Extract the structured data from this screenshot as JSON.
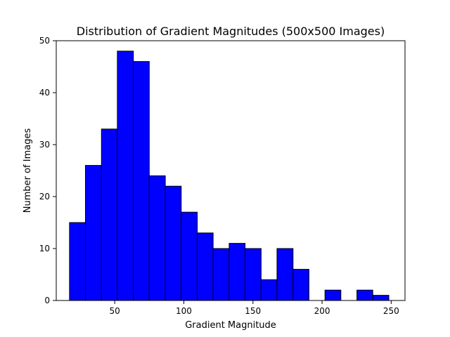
{
  "chart_data": {
    "type": "bar",
    "title": "Distribution of Gradient Magnitudes (500x500 Images)",
    "xlabel": "Gradient Magnitude",
    "ylabel": "Number of Images",
    "xlim": [
      7.7,
      260.0
    ],
    "ylim": [
      0,
      50
    ],
    "xticks": [
      50,
      100,
      150,
      200,
      250
    ],
    "yticks": [
      0,
      10,
      20,
      30,
      40,
      50
    ],
    "grid": false,
    "bar_color": "#0000ff",
    "edge_color": "#000000",
    "bins": [
      {
        "x0": 17.3,
        "x1": 28.8,
        "count": 15
      },
      {
        "x0": 28.8,
        "x1": 40.4,
        "count": 26
      },
      {
        "x0": 40.4,
        "x1": 51.9,
        "count": 33
      },
      {
        "x0": 51.9,
        "x1": 63.5,
        "count": 48
      },
      {
        "x0": 63.5,
        "x1": 75.0,
        "count": 46
      },
      {
        "x0": 75.0,
        "x1": 86.6,
        "count": 24
      },
      {
        "x0": 86.6,
        "x1": 98.1,
        "count": 22
      },
      {
        "x0": 98.1,
        "x1": 109.7,
        "count": 17
      },
      {
        "x0": 109.7,
        "x1": 121.2,
        "count": 13
      },
      {
        "x0": 121.2,
        "x1": 132.8,
        "count": 10
      },
      {
        "x0": 132.8,
        "x1": 144.3,
        "count": 11
      },
      {
        "x0": 144.3,
        "x1": 155.9,
        "count": 10
      },
      {
        "x0": 155.9,
        "x1": 167.4,
        "count": 4
      },
      {
        "x0": 167.4,
        "x1": 179.0,
        "count": 10
      },
      {
        "x0": 179.0,
        "x1": 190.5,
        "count": 6
      },
      {
        "x0": 190.5,
        "x1": 202.1,
        "count": 0
      },
      {
        "x0": 202.1,
        "x1": 213.6,
        "count": 2
      },
      {
        "x0": 213.6,
        "x1": 225.2,
        "count": 0
      },
      {
        "x0": 225.2,
        "x1": 236.7,
        "count": 2
      },
      {
        "x0": 236.7,
        "x1": 248.3,
        "count": 1
      }
    ]
  }
}
